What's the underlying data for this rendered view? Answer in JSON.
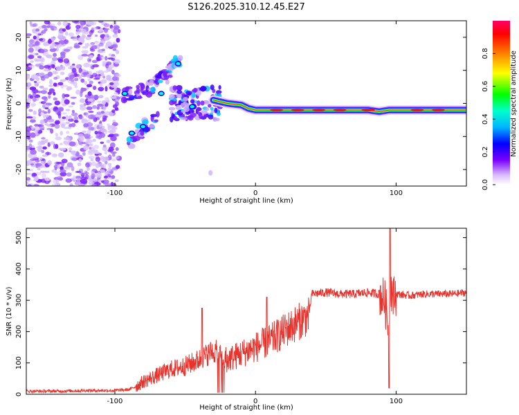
{
  "title": "S126.2025.310.12.45.E27",
  "colors": {
    "axis": "#000000",
    "snr_line": "#e8322c",
    "blob": "#7a1cff",
    "blob_light": "#c9a8ff"
  },
  "chart_data": [
    {
      "type": "heatmap",
      "name": "spectrogram",
      "xlabel": "Height of straight line (km)",
      "ylabel": "Frequency (Hz)",
      "xlim": [
        -163,
        150
      ],
      "ylim": [
        -25,
        25
      ],
      "xticks": [
        -100,
        0,
        100
      ],
      "yticks": [
        20,
        10,
        0,
        -10,
        -20
      ],
      "colorbar": {
        "label": "Normalized spectral amplitude",
        "range": [
          0,
          1
        ],
        "ticks": [
          "0.0",
          "0.2",
          "0.4",
          "0.6",
          "0.8"
        ],
        "colormap": [
          "#ffffff",
          "#b07cff",
          "#6a00ff",
          "#0000ff",
          "#00c8ff",
          "#00ff66",
          "#ffff00",
          "#ff8000",
          "#ff0000",
          "#ff0066"
        ]
      },
      "ridge": {
        "description": "dominant frequency track",
        "points_x": [
          -30,
          -20,
          -10,
          -5,
          0,
          10,
          20,
          40,
          60,
          80,
          88,
          95,
          110,
          130,
          150
        ],
        "points_freq": [
          1,
          0,
          -0.5,
          -1.5,
          -2,
          -2,
          -2,
          -2,
          -2,
          -2,
          -2.5,
          -2,
          -2,
          -2,
          -2
        ]
      },
      "arms": [
        {
          "name": "upper-branch",
          "x": [
            -95,
            -80,
            -70,
            -60,
            -55
          ],
          "freq": [
            2,
            4,
            6,
            10,
            13
          ]
        },
        {
          "name": "lower-branch",
          "x": [
            -90,
            -80,
            -70
          ],
          "freq": [
            -12,
            -8,
            -4
          ]
        }
      ]
    },
    {
      "type": "line",
      "name": "snr",
      "xlabel": "Height of straight line (km)",
      "ylabel": "SNR (10 * v/v)",
      "xlim": [
        -163,
        150
      ],
      "ylim": [
        0,
        530
      ],
      "xticks": [
        -100,
        0,
        100
      ],
      "yticks": [
        0,
        100,
        200,
        300,
        400,
        500
      ],
      "series": [
        {
          "name": "SNR",
          "x": [
            -163,
            -140,
            -120,
            -100,
            -90,
            -85,
            -80,
            -70,
            -60,
            -50,
            -40,
            -30,
            -20,
            -10,
            0,
            10,
            20,
            30,
            38,
            40,
            50,
            60,
            70,
            80,
            88,
            92,
            95,
            96,
            98,
            100,
            110,
            120,
            130,
            140,
            150
          ],
          "y": [
            10,
            10,
            12,
            12,
            15,
            25,
            40,
            60,
            80,
            90,
            110,
            140,
            110,
            130,
            150,
            170,
            200,
            230,
            250,
            320,
            325,
            320,
            320,
            325,
            320,
            300,
            200,
            350,
            310,
            320,
            315,
            320,
            320,
            320,
            325
          ]
        }
      ]
    }
  ]
}
